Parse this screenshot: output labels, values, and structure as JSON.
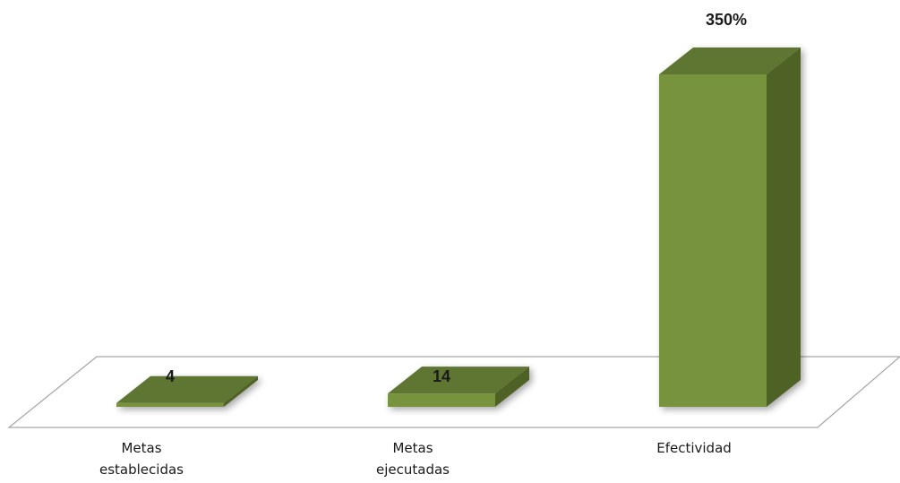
{
  "chart_data": {
    "type": "bar",
    "style": "3d-column",
    "categories": [
      [
        "Metas",
        "establecidas"
      ],
      [
        "Metas",
        "ejecutadas"
      ],
      [
        "Efectividad"
      ]
    ],
    "values": [
      4,
      14,
      350
    ],
    "data_labels": [
      "4",
      "14",
      "350%"
    ],
    "title": "",
    "xlabel": "",
    "ylabel": "",
    "ylim": [
      0,
      400
    ],
    "grid": false,
    "legend": "none",
    "colors": {
      "front": "#77933c",
      "side": "#4f6228",
      "top": "#5f7530",
      "floor_stroke": "#a6a6a6"
    }
  }
}
